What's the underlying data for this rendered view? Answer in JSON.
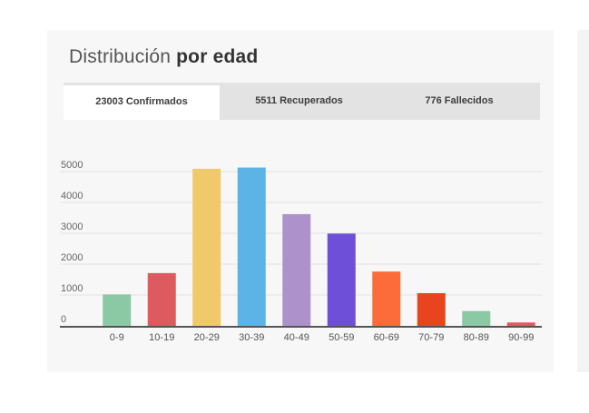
{
  "card": {
    "title_regular": "Distribución",
    "title_bold": "por edad"
  },
  "tabs": [
    {
      "label": "23003 Confirmados",
      "active": true
    },
    {
      "label": "5511 Recuperados",
      "active": false
    },
    {
      "label": "776 Fallecidos",
      "active": false
    }
  ],
  "chart_data": {
    "type": "bar",
    "categories": [
      "0-9",
      "10-19",
      "20-29",
      "30-39",
      "40-49",
      "50-59",
      "60-69",
      "70-79",
      "80-89",
      "90-99"
    ],
    "values": [
      1020,
      1710,
      5090,
      5130,
      3620,
      2990,
      1760,
      1060,
      480,
      110
    ],
    "colors": [
      "#8bc8a4",
      "#dd5a5e",
      "#f0c96a",
      "#5cb4e6",
      "#ad91cb",
      "#6d4fd8",
      "#fb6c3a",
      "#e8451f",
      "#8bc8a4",
      "#dd5a5e"
    ],
    "yticks": [
      0,
      1000,
      2000,
      3000,
      4000,
      5000
    ],
    "ylim": [
      0,
      5500
    ],
    "grid": true,
    "title": "",
    "xlabel": "",
    "ylabel": ""
  }
}
